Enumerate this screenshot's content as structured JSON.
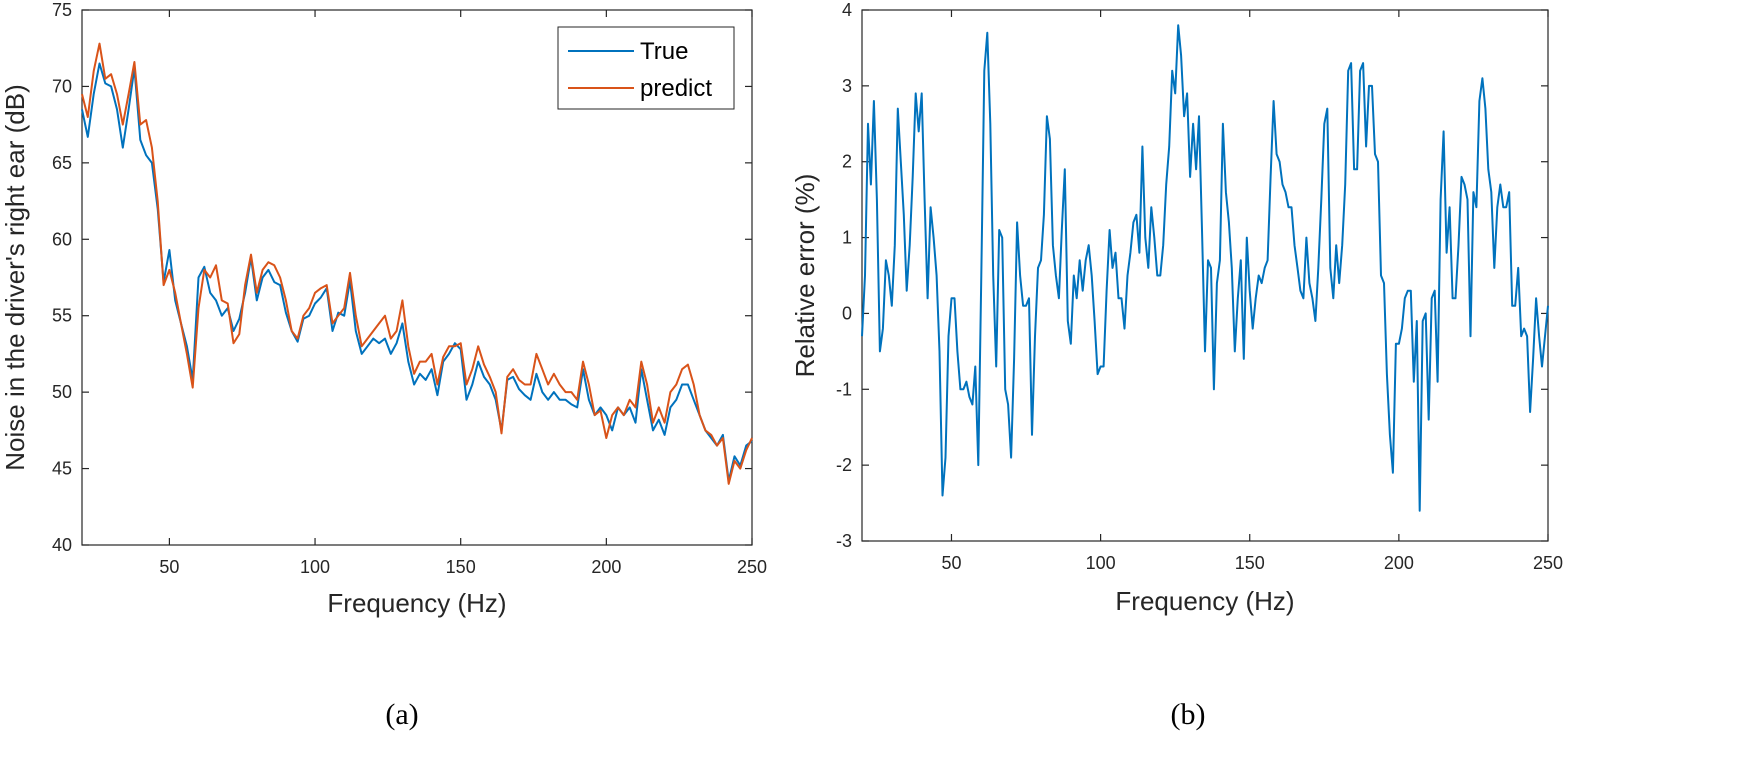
{
  "chart_data": [
    {
      "type": "line",
      "panel_label": "(a)",
      "xlabel": "Frequency (Hz)",
      "ylabel": "Noise in the driver's right ear (dB)",
      "xlim": [
        20,
        250
      ],
      "ylim": [
        40,
        75
      ],
      "xticks": [
        50,
        100,
        150,
        200,
        250
      ],
      "yticks": [
        40,
        45,
        50,
        55,
        60,
        65,
        70,
        75
      ],
      "legend_position": "top-right",
      "series": [
        {
          "name": "True",
          "color": "#0072BD",
          "x": [
            20,
            22,
            24,
            26,
            28,
            30,
            32,
            34,
            36,
            38,
            40,
            42,
            44,
            46,
            48,
            50,
            52,
            54,
            56,
            58,
            60,
            62,
            64,
            66,
            68,
            70,
            72,
            74,
            76,
            78,
            80,
            82,
            84,
            86,
            88,
            90,
            92,
            94,
            96,
            98,
            100,
            102,
            104,
            106,
            108,
            110,
            112,
            114,
            116,
            118,
            120,
            122,
            124,
            126,
            128,
            130,
            132,
            134,
            136,
            138,
            140,
            142,
            144,
            146,
            148,
            150,
            152,
            154,
            156,
            158,
            160,
            162,
            164,
            166,
            168,
            170,
            172,
            174,
            176,
            178,
            180,
            182,
            184,
            186,
            188,
            190,
            192,
            194,
            196,
            198,
            200,
            202,
            204,
            206,
            208,
            210,
            212,
            214,
            216,
            218,
            220,
            222,
            224,
            226,
            228,
            230,
            232,
            234,
            236,
            238,
            240,
            242,
            244,
            246,
            248,
            250
          ],
          "y": [
            68.5,
            66.7,
            69.5,
            71.5,
            70.2,
            70.0,
            68.5,
            66.0,
            68.5,
            71.2,
            66.5,
            65.5,
            65.0,
            62.0,
            57.2,
            59.3,
            56.0,
            54.5,
            53.0,
            50.8,
            57.5,
            58.2,
            56.5,
            56.0,
            55.0,
            55.5,
            54.0,
            54.8,
            56.5,
            58.8,
            56.0,
            57.5,
            58.0,
            57.2,
            57.0,
            55.2,
            54.0,
            53.3,
            54.8,
            55.0,
            55.8,
            56.2,
            56.8,
            54.0,
            55.2,
            55.0,
            57.3,
            54.0,
            52.5,
            53.0,
            53.5,
            53.2,
            53.5,
            52.5,
            53.2,
            54.5,
            52.0,
            50.5,
            51.2,
            50.8,
            51.5,
            49.8,
            52.0,
            52.5,
            53.2,
            52.8,
            49.5,
            50.5,
            52.0,
            51.0,
            50.5,
            49.5,
            47.5,
            50.8,
            51.0,
            50.2,
            49.8,
            49.5,
            51.2,
            50.0,
            49.5,
            50.0,
            49.5,
            49.5,
            49.2,
            49.0,
            51.5,
            49.5,
            48.5,
            49.0,
            48.5,
            47.5,
            49.0,
            48.5,
            49.0,
            48.0,
            51.5,
            49.5,
            47.5,
            48.2,
            47.2,
            49.0,
            49.5,
            50.5,
            50.5,
            49.5,
            48.5,
            47.5,
            47.0,
            46.5,
            47.2,
            44.2,
            45.8,
            45.2,
            46.5,
            46.8
          ]
        },
        {
          "name": "predict",
          "color": "#D95319",
          "x": [
            20,
            22,
            24,
            26,
            28,
            30,
            32,
            34,
            36,
            38,
            40,
            42,
            44,
            46,
            48,
            50,
            52,
            54,
            56,
            58,
            60,
            62,
            64,
            66,
            68,
            70,
            72,
            74,
            76,
            78,
            80,
            82,
            84,
            86,
            88,
            90,
            92,
            94,
            96,
            98,
            100,
            102,
            104,
            106,
            108,
            110,
            112,
            114,
            116,
            118,
            120,
            122,
            124,
            126,
            128,
            130,
            132,
            134,
            136,
            138,
            140,
            142,
            144,
            146,
            148,
            150,
            152,
            154,
            156,
            158,
            160,
            162,
            164,
            166,
            168,
            170,
            172,
            174,
            176,
            178,
            180,
            182,
            184,
            186,
            188,
            190,
            192,
            194,
            196,
            198,
            200,
            202,
            204,
            206,
            208,
            210,
            212,
            214,
            216,
            218,
            220,
            222,
            224,
            226,
            228,
            230,
            232,
            234,
            236,
            238,
            240,
            242,
            244,
            246,
            248,
            250
          ],
          "y": [
            69.5,
            68.0,
            71.0,
            72.8,
            70.5,
            70.8,
            69.5,
            67.5,
            69.5,
            71.6,
            67.5,
            67.8,
            66.0,
            62.5,
            57.0,
            58.0,
            56.5,
            54.5,
            52.5,
            50.3,
            55.5,
            58.0,
            57.5,
            58.3,
            56.0,
            55.8,
            53.2,
            53.8,
            57.0,
            59.0,
            56.5,
            58.0,
            58.5,
            58.3,
            57.5,
            56.0,
            54.0,
            53.5,
            55.0,
            55.5,
            56.5,
            56.8,
            57.0,
            54.5,
            55.0,
            55.5,
            57.8,
            55.0,
            53.0,
            53.5,
            54.0,
            54.5,
            55.0,
            53.5,
            54.0,
            56.0,
            53.0,
            51.2,
            52.0,
            52.0,
            52.5,
            50.5,
            52.3,
            53.0,
            53.0,
            53.2,
            50.5,
            51.5,
            53.0,
            51.8,
            51.0,
            50.0,
            47.3,
            51.0,
            51.5,
            50.8,
            50.5,
            50.5,
            52.5,
            51.5,
            50.5,
            51.2,
            50.5,
            50.0,
            50.0,
            49.5,
            52.0,
            50.5,
            48.5,
            48.8,
            47.0,
            48.5,
            49.0,
            48.5,
            49.5,
            49.0,
            52.0,
            50.5,
            48.0,
            49.0,
            48.0,
            50.0,
            50.5,
            51.5,
            51.8,
            50.5,
            48.5,
            47.5,
            47.2,
            46.5,
            47.0,
            44.0,
            45.5,
            45.0,
            46.2,
            47.0
          ]
        }
      ]
    },
    {
      "type": "line",
      "panel_label": "(b)",
      "xlabel": "Frequency (Hz)",
      "ylabel": "Relative error (%)",
      "xlim": [
        20,
        250
      ],
      "ylim": [
        -3,
        4
      ],
      "xticks": [
        50,
        100,
        150,
        200,
        250
      ],
      "yticks": [
        -3,
        -2,
        -1,
        0,
        1,
        2,
        3,
        4
      ],
      "series": [
        {
          "name": "Relative error",
          "color": "#0072BD",
          "x": [
            20,
            21,
            22,
            23,
            24,
            25,
            26,
            27,
            28,
            29,
            30,
            31,
            32,
            33,
            34,
            35,
            36,
            37,
            38,
            39,
            40,
            41,
            42,
            43,
            44,
            45,
            46,
            47,
            48,
            49,
            50,
            51,
            52,
            53,
            54,
            55,
            56,
            57,
            58,
            59,
            60,
            61,
            62,
            63,
            64,
            65,
            66,
            67,
            68,
            69,
            70,
            71,
            72,
            73,
            74,
            75,
            76,
            77,
            78,
            79,
            80,
            81,
            82,
            83,
            84,
            85,
            86,
            87,
            88,
            89,
            90,
            91,
            92,
            93,
            94,
            95,
            96,
            97,
            98,
            99,
            100,
            101,
            102,
            103,
            104,
            105,
            106,
            107,
            108,
            109,
            110,
            111,
            112,
            113,
            114,
            115,
            116,
            117,
            118,
            119,
            120,
            121,
            122,
            123,
            124,
            125,
            126,
            127,
            128,
            129,
            130,
            131,
            132,
            133,
            134,
            135,
            136,
            137,
            138,
            139,
            140,
            141,
            142,
            143,
            144,
            145,
            146,
            147,
            148,
            149,
            150,
            151,
            152,
            153,
            154,
            155,
            156,
            157,
            158,
            159,
            160,
            161,
            162,
            163,
            164,
            165,
            166,
            167,
            168,
            169,
            170,
            171,
            172,
            173,
            174,
            175,
            176,
            177,
            178,
            179,
            180,
            181,
            182,
            183,
            184,
            185,
            186,
            187,
            188,
            189,
            190,
            191,
            192,
            193,
            194,
            195,
            196,
            197,
            198,
            199,
            200,
            201,
            202,
            203,
            204,
            205,
            206,
            207,
            208,
            209,
            210,
            211,
            212,
            213,
            214,
            215,
            216,
            217,
            218,
            219,
            220,
            221,
            222,
            223,
            224,
            225,
            226,
            227,
            228,
            229,
            230,
            231,
            232,
            233,
            234,
            235,
            236,
            237,
            238,
            239,
            240,
            241,
            242,
            243,
            244,
            245,
            246,
            247,
            248,
            249,
            250
          ],
          "y": [
            -0.3,
            0.5,
            2.5,
            1.7,
            2.8,
            1.5,
            -0.5,
            -0.2,
            0.7,
            0.5,
            0.1,
            0.9,
            2.7,
            2.0,
            1.3,
            0.3,
            0.9,
            1.8,
            2.9,
            2.4,
            2.9,
            1.5,
            0.2,
            1.4,
            1.0,
            0.5,
            -0.5,
            -2.4,
            -1.9,
            -0.3,
            0.2,
            0.2,
            -0.5,
            -1.0,
            -1.0,
            -0.9,
            -1.1,
            -1.2,
            -0.7,
            -2.0,
            0.5,
            3.2,
            3.7,
            2.5,
            0.5,
            -0.7,
            1.1,
            1.0,
            -1.0,
            -1.2,
            -1.9,
            -0.6,
            1.2,
            0.5,
            0.1,
            0.1,
            0.2,
            -1.6,
            -0.3,
            0.6,
            0.7,
            1.3,
            2.6,
            2.3,
            0.9,
            0.5,
            0.2,
            1.1,
            1.9,
            -0.1,
            -0.4,
            0.5,
            0.2,
            0.7,
            0.3,
            0.7,
            0.9,
            0.5,
            -0.1,
            -0.8,
            -0.7,
            -0.7,
            0.3,
            1.1,
            0.6,
            0.8,
            0.2,
            0.2,
            -0.2,
            0.5,
            0.8,
            1.2,
            1.3,
            0.8,
            2.2,
            1.0,
            0.6,
            1.4,
            1.0,
            0.5,
            0.5,
            0.9,
            1.7,
            2.2,
            3.2,
            2.9,
            3.8,
            3.4,
            2.6,
            2.9,
            1.8,
            2.5,
            1.9,
            2.6,
            1.1,
            -0.5,
            0.7,
            0.6,
            -1.0,
            0.4,
            0.7,
            2.5,
            1.6,
            1.2,
            0.6,
            -0.5,
            0.2,
            0.7,
            -0.6,
            1.0,
            0.3,
            -0.2,
            0.2,
            0.5,
            0.4,
            0.6,
            0.7,
            1.8,
            2.8,
            2.1,
            2.0,
            1.7,
            1.6,
            1.4,
            1.4,
            0.9,
            0.6,
            0.3,
            0.2,
            1.0,
            0.4,
            0.2,
            -0.1,
            0.6,
            1.5,
            2.5,
            2.7,
            0.6,
            0.2,
            0.9,
            0.4,
            0.9,
            1.7,
            3.2,
            3.3,
            1.9,
            1.9,
            3.2,
            3.3,
            2.2,
            3.0,
            3.0,
            2.1,
            2.0,
            0.5,
            0.4,
            -0.8,
            -1.6,
            -2.1,
            -0.4,
            -0.4,
            -0.2,
            0.2,
            0.3,
            0.3,
            -0.9,
            -0.1,
            -2.6,
            -0.1,
            0.0,
            -1.4,
            0.2,
            0.3,
            -0.9,
            1.5,
            2.4,
            0.8,
            1.4,
            0.2,
            0.2,
            0.9,
            1.8,
            1.7,
            1.5,
            -0.3,
            1.6,
            1.4,
            2.8,
            3.1,
            2.7,
            1.9,
            1.6,
            0.6,
            1.4,
            1.7,
            1.4,
            1.4,
            1.6,
            0.1,
            0.1,
            0.6,
            -0.3,
            -0.2,
            -0.3,
            -1.3,
            -0.6,
            0.2,
            -0.3,
            -0.7,
            -0.3,
            0.1
          ]
        }
      ]
    }
  ]
}
